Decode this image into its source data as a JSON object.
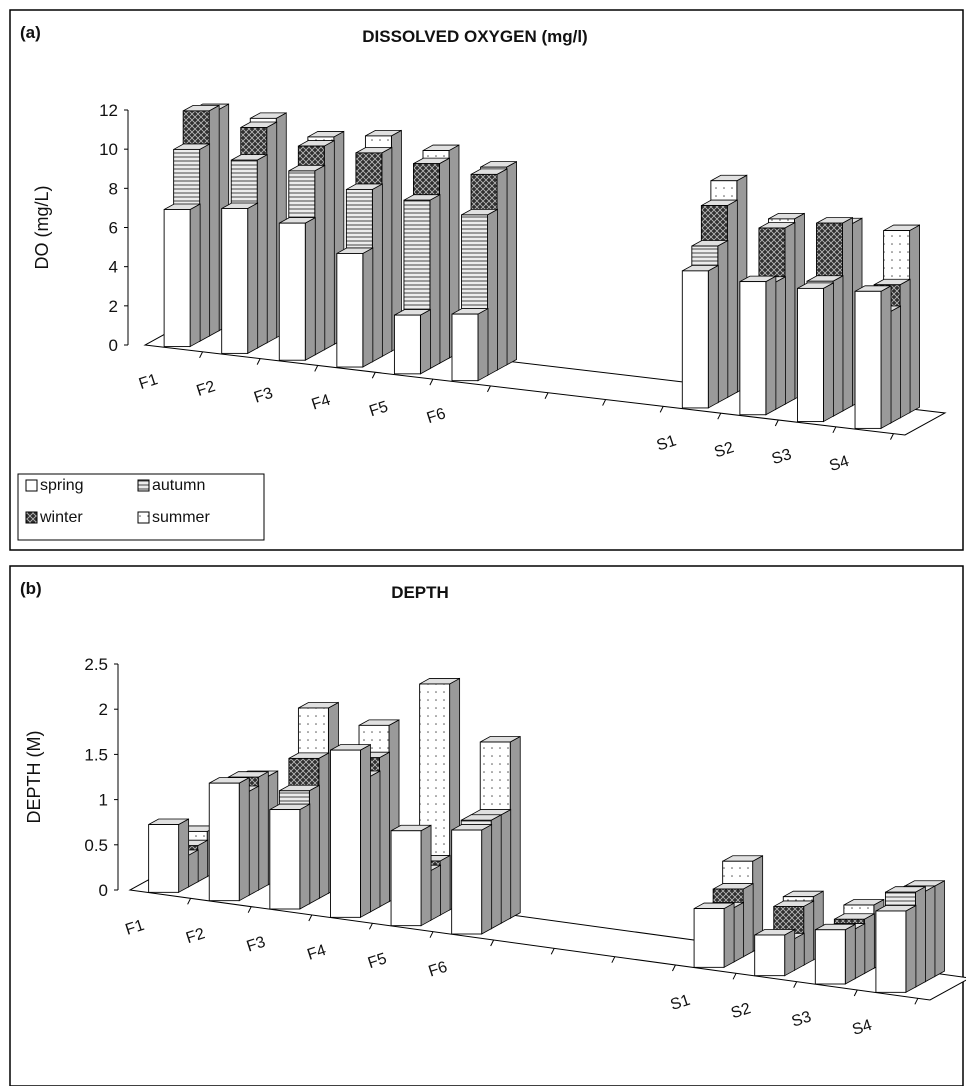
{
  "colors": {
    "spring": "#ffffff",
    "autumn": "#ececec",
    "winter": "#303030",
    "summer": "#ffffff",
    "outline": "#000000"
  },
  "legend": {
    "entries": [
      "spring",
      "autumn",
      "winter",
      "summer"
    ]
  },
  "chart_data": [
    {
      "panel_label": "(a)",
      "type": "bar",
      "title": "DISSOLVED OXYGEN (mg/l)",
      "ylabel": "DO (mg/L)",
      "ylim": [
        0,
        12
      ],
      "yticks": [
        "0",
        "2",
        "4",
        "6",
        "8",
        "10",
        "12"
      ],
      "categories": [
        "F1",
        "F2",
        "F3",
        "F4",
        "F5",
        "F6",
        "S1",
        "S2",
        "S3",
        "S4"
      ],
      "series": [
        {
          "name": "spring",
          "values": [
            7.0,
            7.4,
            7.0,
            5.8,
            3.0,
            3.4,
            7.0,
            6.8,
            6.8,
            7.0
          ]
        },
        {
          "name": "autumn",
          "values": [
            9.8,
            9.6,
            9.4,
            8.8,
            8.6,
            8.2,
            8.0,
            6.5,
            6.9,
            5.7
          ]
        },
        {
          "name": "winter",
          "values": [
            11.5,
            11.0,
            10.4,
            10.4,
            10.2,
            10.0,
            9.8,
            9.0,
            9.6,
            6.8
          ]
        },
        {
          "name": "summer",
          "values": [
            11.3,
            11.2,
            10.6,
            11.0,
            10.6,
            10.1,
            10.8,
            9.2,
            9.3,
            9.3
          ]
        }
      ]
    },
    {
      "panel_label": "(b)",
      "type": "bar",
      "title": "DEPTH",
      "ylabel": "DEPTH (M)",
      "ylim": [
        0,
        2.5
      ],
      "yticks": [
        "0",
        "0.5",
        "1",
        "1.5",
        "2",
        "2.5"
      ],
      "categories": [
        "F1",
        "F2",
        "F3",
        "F4",
        "F5",
        "F6",
        "S1",
        "S2",
        "S3",
        "S4"
      ],
      "series": [
        {
          "name": "spring",
          "values": [
            0.75,
            1.3,
            1.1,
            1.85,
            1.05,
            1.15,
            0.65,
            0.45,
            0.6,
            0.9
          ]
        },
        {
          "name": "autumn",
          "values": [
            0.35,
            1.15,
            1.25,
            1.5,
            0.55,
            1.2,
            0.6,
            0.35,
            0.55,
            1.05
          ]
        },
        {
          "name": "winter",
          "values": [
            0.4,
            1.25,
            1.55,
            1.65,
            0.6,
            1.2,
            0.75,
            0.65,
            0.6,
            1.0
          ]
        },
        {
          "name": "summer",
          "values": [
            0.5,
            1.2,
            2.05,
            1.95,
            2.5,
            1.95,
            1.0,
            0.7,
            0.7,
            1.0
          ]
        }
      ]
    }
  ]
}
